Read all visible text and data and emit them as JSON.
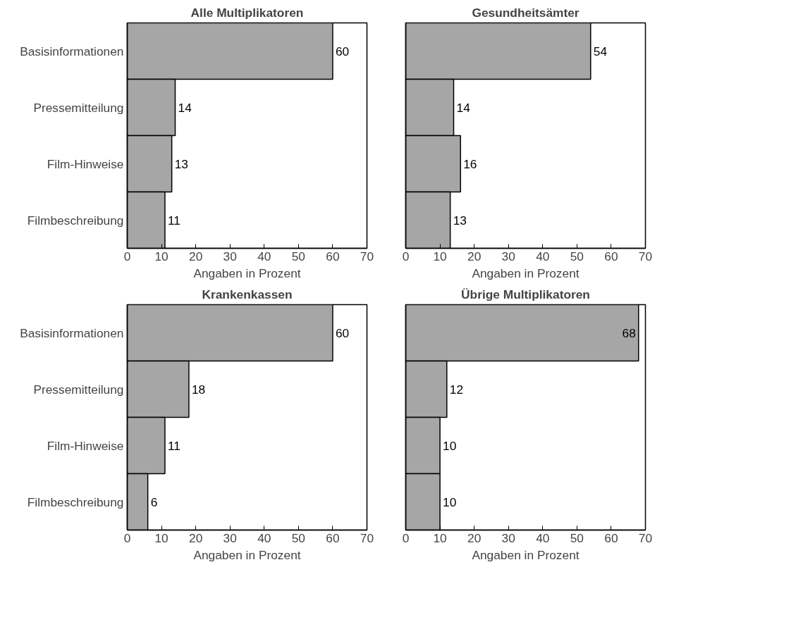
{
  "chart_data": [
    {
      "type": "bar",
      "orientation": "horizontal",
      "title": "Alle Multiplikatoren",
      "xlabel": "Angaben in Prozent",
      "categories": [
        "Basisinformationen",
        "Pressemitteilung",
        "Film-Hinweise",
        "Filmbeschreibung"
      ],
      "values": [
        60,
        14,
        13,
        11
      ],
      "color": "#a6a6a6",
      "xlim": [
        0,
        70
      ],
      "xticks": [
        0,
        10,
        20,
        30,
        40,
        50,
        60,
        70
      ],
      "data_labels": true
    },
    {
      "type": "bar",
      "orientation": "horizontal",
      "title": "Gesundheitsämter",
      "xlabel": "Angaben in Prozent",
      "categories": [
        null,
        null,
        null,
        null
      ],
      "values": [
        54,
        14,
        16,
        13
      ],
      "color": "#a6a6a6",
      "xlim": [
        0,
        70
      ],
      "xticks": [
        0,
        10,
        20,
        30,
        40,
        50,
        60,
        70
      ],
      "data_labels": true
    },
    {
      "type": "bar",
      "orientation": "horizontal",
      "title": "Krankenkassen",
      "xlabel": "Angaben in Prozent",
      "categories": [
        "Basisinformationen",
        "Pressemitteilung",
        "Film-Hinweise",
        "Filmbeschreibung"
      ],
      "values": [
        60,
        18,
        11,
        6
      ],
      "color": "#a6a6a6",
      "xlim": [
        0,
        70
      ],
      "xticks": [
        0,
        10,
        20,
        30,
        40,
        50,
        60,
        70
      ],
      "data_labels": true
    },
    {
      "type": "bar",
      "orientation": "horizontal",
      "title": "Übrige Multiplikatoren",
      "xlabel": "Angaben in Prozent",
      "categories": [
        null,
        null,
        null,
        null
      ],
      "values": [
        68,
        12,
        10,
        10
      ],
      "color": "#a6a6a6",
      "xlim": [
        0,
        70
      ],
      "xticks": [
        0,
        10,
        20,
        30,
        40,
        50,
        60,
        70
      ],
      "data_labels": true
    }
  ]
}
